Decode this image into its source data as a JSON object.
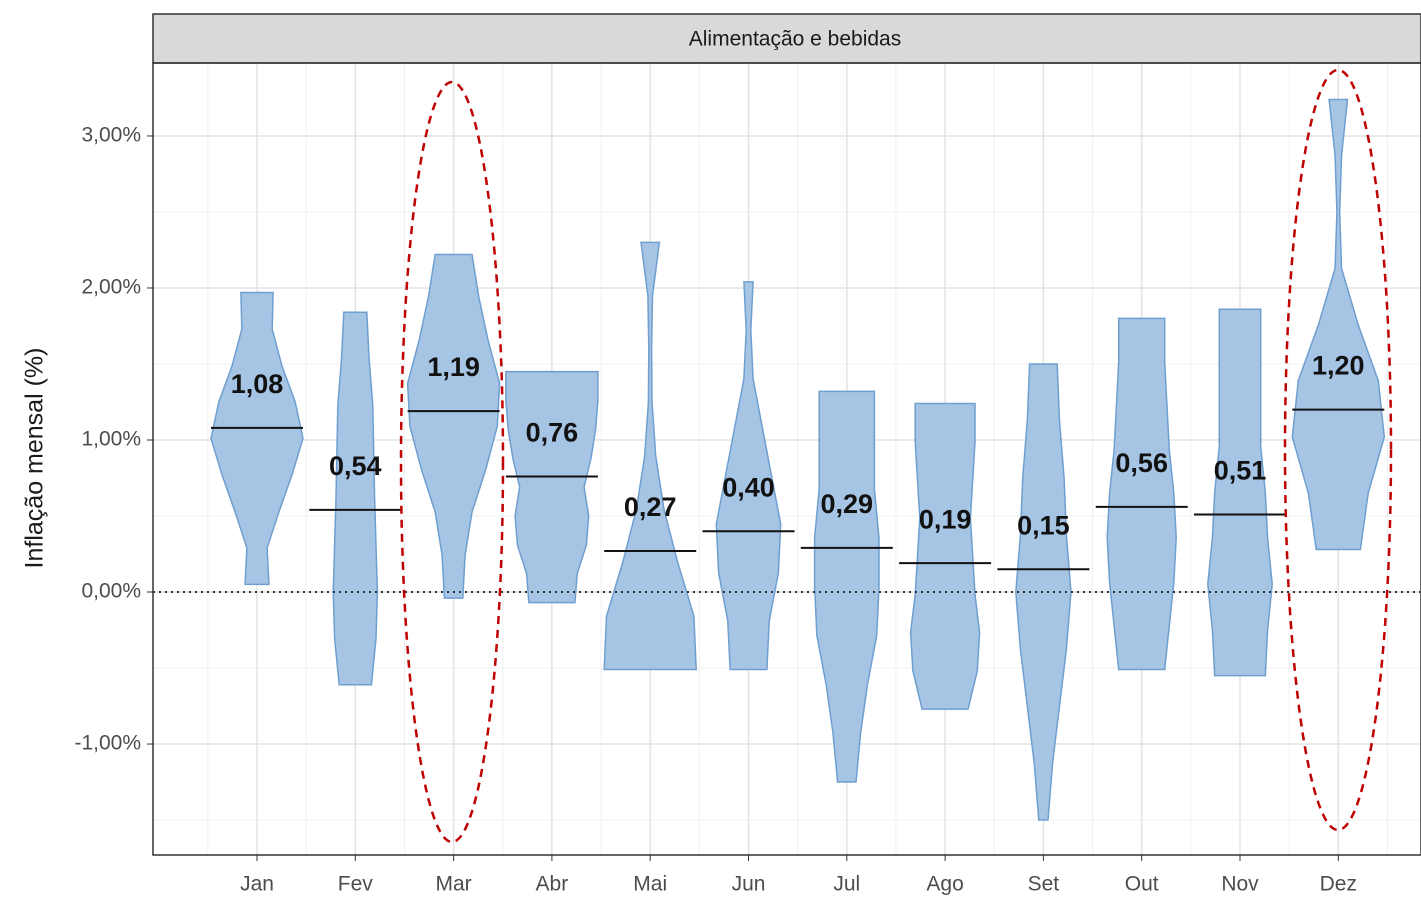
{
  "chart_data": {
    "type": "violin",
    "strip_title": "Alimentação e bebidas",
    "y_label": "Inflação mensal (%)",
    "categories": [
      "Jan",
      "Fev",
      "Mar",
      "Abr",
      "Mai",
      "Jun",
      "Jul",
      "Ago",
      "Set",
      "Out",
      "Nov",
      "Dez"
    ],
    "color": "#a6c4e4",
    "edge_color": "#6f9fcf",
    "medians": [
      1.08,
      0.54,
      1.19,
      0.76,
      0.27,
      0.4,
      0.29,
      0.19,
      0.15,
      0.56,
      0.51,
      1.2
    ],
    "value_labels": [
      "1,08",
      "0,54",
      "1,19",
      "0,76",
      "0,27",
      "0,40",
      "0,29",
      "0,19",
      "0,15",
      "0,56",
      "0,51",
      "1,20"
    ],
    "min": [
      0.05,
      -0.61,
      -0.04,
      -0.07,
      -0.51,
      -0.51,
      -1.25,
      -0.77,
      -1.5,
      -0.51,
      -0.55,
      0.28
    ],
    "max": [
      1.97,
      1.84,
      2.22,
      1.45,
      2.3,
      2.04,
      1.32,
      1.24,
      1.5,
      1.8,
      1.86,
      3.24
    ],
    "density": [
      [
        0.26,
        0.22,
        0.48,
        0.76,
        1.0,
        0.83,
        0.54,
        0.33,
        0.35
      ],
      [
        0.35,
        0.45,
        0.48,
        0.45,
        0.42,
        0.4,
        0.38,
        0.3,
        0.25
      ],
      [
        0.2,
        0.25,
        0.4,
        0.7,
        0.95,
        1.0,
        0.75,
        0.55,
        0.4
      ],
      [
        0.5,
        0.55,
        0.75,
        0.8,
        0.7,
        0.85,
        0.95,
        1.0,
        1.0
      ],
      [
        1.0,
        0.95,
        0.6,
        0.3,
        0.12,
        0.04,
        0.03,
        0.05,
        0.2
      ],
      [
        0.4,
        0.45,
        0.65,
        0.7,
        0.5,
        0.3,
        0.1,
        0.05,
        0.1
      ],
      [
        0.2,
        0.3,
        0.45,
        0.65,
        0.7,
        0.7,
        0.6,
        0.6,
        0.6
      ],
      [
        0.5,
        0.7,
        0.75,
        0.65,
        0.6,
        0.55,
        0.6,
        0.65,
        0.65
      ],
      [
        0.1,
        0.2,
        0.35,
        0.5,
        0.6,
        0.5,
        0.45,
        0.35,
        0.3
      ],
      [
        0.5,
        0.6,
        0.7,
        0.75,
        0.7,
        0.6,
        0.55,
        0.5,
        0.5
      ],
      [
        0.55,
        0.6,
        0.7,
        0.6,
        0.55,
        0.45,
        0.45,
        0.45,
        0.45
      ],
      [
        0.48,
        0.65,
        1.0,
        0.87,
        0.43,
        0.07,
        0.03,
        0.07,
        0.2
      ]
    ],
    "reference_line": 0,
    "ylim": [
      -1.73,
      3.48
    ],
    "yticks": [
      {
        "value": -1,
        "label": "-1,00%"
      },
      {
        "value": 0,
        "label": "0,00%"
      },
      {
        "value": 1,
        "label": "1,00%"
      },
      {
        "value": 2,
        "label": "2,00%"
      },
      {
        "value": 3,
        "label": "3,00%"
      }
    ],
    "grid": true
  }
}
